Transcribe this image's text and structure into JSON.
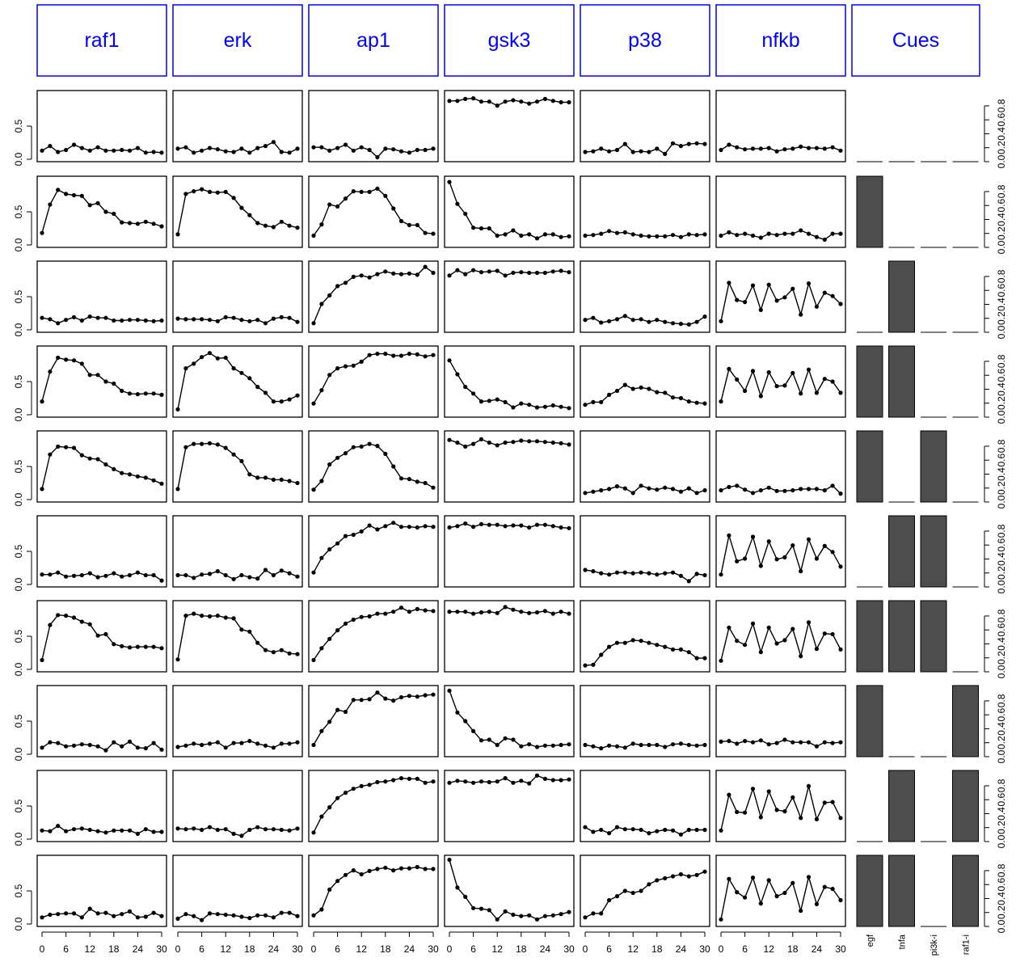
{
  "chart_data": {
    "type": "line",
    "species": [
      "raf1",
      "erk",
      "ap1",
      "gsk3",
      "p38",
      "nfkb"
    ],
    "cues_header": "Cues",
    "cue_names": [
      "egf",
      "tnfa",
      "pi3k-i",
      "raf1-i"
    ],
    "x": [
      0,
      2,
      4,
      6,
      8,
      10,
      12,
      14,
      16,
      18,
      20,
      22,
      24,
      26,
      28,
      30
    ],
    "x_ticks": [
      "0",
      "6",
      "12",
      "18",
      "24",
      "30"
    ],
    "y_ticks_left": [
      "0.0",
      "0.5"
    ],
    "y_ticks_right": [
      "0.0",
      "0.2",
      "0.4",
      "0.6",
      "0.8"
    ],
    "ylim": [
      0,
      1
    ],
    "xlim": [
      0,
      30
    ],
    "colors": {
      "header_border": "#0000ff",
      "header_text": "#0000ff",
      "cue_bar": "#4d4d4d",
      "line": "#000000"
    },
    "cues": [
      [
        0,
        0,
        0,
        0
      ],
      [
        1,
        0,
        0,
        0
      ],
      [
        0,
        1,
        0,
        0
      ],
      [
        1,
        1,
        0,
        0
      ],
      [
        1,
        0,
        1,
        0
      ],
      [
        0,
        1,
        1,
        0
      ],
      [
        1,
        1,
        1,
        0
      ],
      [
        1,
        0,
        0,
        1
      ],
      [
        0,
        1,
        0,
        1
      ],
      [
        1,
        1,
        0,
        1
      ]
    ],
    "series": [
      [
        [
          0.13,
          0.2,
          0.11,
          0.14,
          0.22,
          0.17,
          0.13,
          0.18,
          0.13,
          0.13,
          0.14,
          0.13,
          0.17,
          0.1,
          0.11,
          0.1
        ],
        [
          0.16,
          0.18,
          0.1,
          0.13,
          0.17,
          0.15,
          0.12,
          0.11,
          0.16,
          0.1,
          0.17,
          0.2,
          0.26,
          0.11,
          0.1,
          0.16
        ],
        [
          0.18,
          0.18,
          0.13,
          0.17,
          0.22,
          0.13,
          0.18,
          0.14,
          0.03,
          0.16,
          0.15,
          0.12,
          0.1,
          0.14,
          0.14,
          0.16
        ],
        [
          0.88,
          0.88,
          0.91,
          0.92,
          0.87,
          0.87,
          0.81,
          0.87,
          0.89,
          0.87,
          0.84,
          0.87,
          0.91,
          0.88,
          0.86,
          0.86
        ],
        [
          0.11,
          0.12,
          0.16,
          0.12,
          0.14,
          0.23,
          0.11,
          0.12,
          0.11,
          0.16,
          0.08,
          0.24,
          0.2,
          0.23,
          0.24,
          0.23
        ],
        [
          0.14,
          0.22,
          0.18,
          0.15,
          0.16,
          0.16,
          0.17,
          0.12,
          0.15,
          0.16,
          0.19,
          0.17,
          0.17,
          0.16,
          0.18,
          0.13
        ]
      ],
      [
        [
          0.18,
          0.61,
          0.83,
          0.77,
          0.75,
          0.74,
          0.6,
          0.63,
          0.5,
          0.47,
          0.34,
          0.33,
          0.32,
          0.35,
          0.32,
          0.28
        ],
        [
          0.16,
          0.77,
          0.81,
          0.84,
          0.8,
          0.79,
          0.8,
          0.71,
          0.56,
          0.45,
          0.33,
          0.29,
          0.27,
          0.35,
          0.29,
          0.26
        ],
        [
          0.14,
          0.31,
          0.61,
          0.58,
          0.7,
          0.81,
          0.8,
          0.8,
          0.85,
          0.74,
          0.55,
          0.36,
          0.3,
          0.3,
          0.18,
          0.17
        ],
        [
          0.95,
          0.62,
          0.47,
          0.26,
          0.25,
          0.25,
          0.14,
          0.16,
          0.22,
          0.14,
          0.16,
          0.1,
          0.16,
          0.16,
          0.12,
          0.13
        ],
        [
          0.14,
          0.15,
          0.17,
          0.21,
          0.18,
          0.19,
          0.16,
          0.14,
          0.13,
          0.13,
          0.13,
          0.15,
          0.12,
          0.16,
          0.15,
          0.16
        ],
        [
          0.14,
          0.19,
          0.15,
          0.17,
          0.14,
          0.11,
          0.17,
          0.15,
          0.17,
          0.17,
          0.22,
          0.17,
          0.12,
          0.08,
          0.17,
          0.17
        ]
      ],
      [
        [
          0.18,
          0.16,
          0.1,
          0.15,
          0.19,
          0.14,
          0.2,
          0.18,
          0.18,
          0.14,
          0.14,
          0.15,
          0.15,
          0.14,
          0.13,
          0.14
        ],
        [
          0.17,
          0.16,
          0.16,
          0.16,
          0.15,
          0.13,
          0.19,
          0.18,
          0.15,
          0.13,
          0.15,
          0.1,
          0.17,
          0.19,
          0.18,
          0.12
        ],
        [
          0.1,
          0.39,
          0.52,
          0.66,
          0.71,
          0.8,
          0.82,
          0.79,
          0.84,
          0.88,
          0.85,
          0.84,
          0.85,
          0.83,
          0.95,
          0.86
        ],
        [
          0.82,
          0.9,
          0.84,
          0.9,
          0.87,
          0.88,
          0.89,
          0.82,
          0.86,
          0.87,
          0.86,
          0.86,
          0.86,
          0.88,
          0.89,
          0.87
        ],
        [
          0.15,
          0.18,
          0.11,
          0.13,
          0.16,
          0.21,
          0.15,
          0.16,
          0.12,
          0.15,
          0.12,
          0.1,
          0.09,
          0.08,
          0.12,
          0.2
        ],
        [
          0.13,
          0.71,
          0.45,
          0.42,
          0.67,
          0.3,
          0.68,
          0.44,
          0.49,
          0.62,
          0.23,
          0.7,
          0.35,
          0.56,
          0.51,
          0.39
        ]
      ],
      [
        [
          0.2,
          0.65,
          0.86,
          0.83,
          0.82,
          0.77,
          0.6,
          0.6,
          0.5,
          0.47,
          0.36,
          0.32,
          0.31,
          0.32,
          0.32,
          0.3
        ],
        [
          0.08,
          0.7,
          0.77,
          0.87,
          0.93,
          0.85,
          0.86,
          0.7,
          0.63,
          0.55,
          0.42,
          0.33,
          0.2,
          0.2,
          0.23,
          0.29
        ],
        [
          0.17,
          0.37,
          0.6,
          0.7,
          0.73,
          0.74,
          0.8,
          0.9,
          0.92,
          0.92,
          0.89,
          0.89,
          0.92,
          0.91,
          0.88,
          0.9
        ],
        [
          0.82,
          0.61,
          0.42,
          0.32,
          0.2,
          0.21,
          0.23,
          0.19,
          0.11,
          0.17,
          0.15,
          0.11,
          0.12,
          0.14,
          0.12,
          0.1
        ],
        [
          0.15,
          0.19,
          0.19,
          0.3,
          0.36,
          0.45,
          0.39,
          0.41,
          0.39,
          0.34,
          0.33,
          0.26,
          0.25,
          0.2,
          0.18,
          0.17
        ],
        [
          0.2,
          0.69,
          0.53,
          0.36,
          0.66,
          0.28,
          0.64,
          0.43,
          0.44,
          0.63,
          0.32,
          0.68,
          0.33,
          0.54,
          0.5,
          0.33
        ]
      ],
      [
        [
          0.16,
          0.68,
          0.8,
          0.79,
          0.78,
          0.67,
          0.62,
          0.61,
          0.53,
          0.46,
          0.4,
          0.38,
          0.35,
          0.33,
          0.29,
          0.24
        ],
        [
          0.16,
          0.79,
          0.84,
          0.84,
          0.85,
          0.83,
          0.78,
          0.68,
          0.58,
          0.38,
          0.33,
          0.33,
          0.3,
          0.3,
          0.28,
          0.25
        ],
        [
          0.15,
          0.28,
          0.53,
          0.63,
          0.7,
          0.79,
          0.8,
          0.84,
          0.81,
          0.69,
          0.5,
          0.32,
          0.31,
          0.27,
          0.25,
          0.18
        ],
        [
          0.9,
          0.86,
          0.8,
          0.84,
          0.91,
          0.86,
          0.82,
          0.86,
          0.87,
          0.89,
          0.88,
          0.88,
          0.87,
          0.86,
          0.85,
          0.83
        ],
        [
          0.1,
          0.12,
          0.14,
          0.16,
          0.2,
          0.17,
          0.1,
          0.21,
          0.17,
          0.15,
          0.18,
          0.16,
          0.12,
          0.17,
          0.1,
          0.14
        ],
        [
          0.14,
          0.19,
          0.21,
          0.15,
          0.1,
          0.14,
          0.18,
          0.13,
          0.13,
          0.14,
          0.16,
          0.16,
          0.16,
          0.14,
          0.21,
          0.09
        ]
      ],
      [
        [
          0.15,
          0.15,
          0.18,
          0.12,
          0.13,
          0.14,
          0.17,
          0.11,
          0.13,
          0.17,
          0.12,
          0.14,
          0.18,
          0.14,
          0.14,
          0.06
        ],
        [
          0.14,
          0.14,
          0.1,
          0.15,
          0.16,
          0.2,
          0.14,
          0.08,
          0.14,
          0.11,
          0.09,
          0.22,
          0.14,
          0.21,
          0.17,
          0.12
        ],
        [
          0.18,
          0.4,
          0.53,
          0.62,
          0.73,
          0.75,
          0.8,
          0.89,
          0.83,
          0.88,
          0.93,
          0.87,
          0.87,
          0.86,
          0.88,
          0.87
        ],
        [
          0.86,
          0.88,
          0.92,
          0.87,
          0.91,
          0.9,
          0.9,
          0.88,
          0.89,
          0.89,
          0.86,
          0.9,
          0.9,
          0.88,
          0.86,
          0.85
        ],
        [
          0.22,
          0.2,
          0.17,
          0.15,
          0.18,
          0.18,
          0.17,
          0.18,
          0.17,
          0.15,
          0.17,
          0.18,
          0.13,
          0.05,
          0.16,
          0.14
        ],
        [
          0.15,
          0.74,
          0.35,
          0.39,
          0.72,
          0.28,
          0.65,
          0.38,
          0.41,
          0.59,
          0.2,
          0.68,
          0.39,
          0.58,
          0.49,
          0.27
        ]
      ],
      [
        [
          0.14,
          0.67,
          0.82,
          0.81,
          0.78,
          0.72,
          0.68,
          0.51,
          0.53,
          0.38,
          0.35,
          0.33,
          0.34,
          0.34,
          0.34,
          0.32
        ],
        [
          0.15,
          0.81,
          0.84,
          0.81,
          0.8,
          0.81,
          0.78,
          0.77,
          0.6,
          0.57,
          0.4,
          0.29,
          0.26,
          0.29,
          0.24,
          0.23
        ],
        [
          0.14,
          0.32,
          0.46,
          0.59,
          0.69,
          0.75,
          0.79,
          0.8,
          0.84,
          0.84,
          0.87,
          0.93,
          0.87,
          0.91,
          0.89,
          0.88
        ],
        [
          0.87,
          0.87,
          0.87,
          0.84,
          0.86,
          0.87,
          0.85,
          0.94,
          0.9,
          0.87,
          0.85,
          0.86,
          0.88,
          0.84,
          0.87,
          0.84
        ],
        [
          0.06,
          0.07,
          0.22,
          0.34,
          0.4,
          0.4,
          0.44,
          0.43,
          0.4,
          0.37,
          0.34,
          0.3,
          0.3,
          0.26,
          0.17,
          0.17
        ],
        [
          0.13,
          0.63,
          0.43,
          0.37,
          0.69,
          0.26,
          0.63,
          0.39,
          0.44,
          0.61,
          0.2,
          0.71,
          0.31,
          0.54,
          0.53,
          0.3
        ]
      ],
      [
        [
          0.1,
          0.18,
          0.17,
          0.12,
          0.13,
          0.15,
          0.14,
          0.12,
          0.06,
          0.18,
          0.12,
          0.19,
          0.1,
          0.09,
          0.17,
          0.07
        ],
        [
          0.11,
          0.13,
          0.16,
          0.14,
          0.16,
          0.18,
          0.1,
          0.17,
          0.17,
          0.2,
          0.16,
          0.13,
          0.1,
          0.16,
          0.16,
          0.18
        ],
        [
          0.14,
          0.35,
          0.49,
          0.67,
          0.64,
          0.82,
          0.82,
          0.83,
          0.93,
          0.84,
          0.81,
          0.86,
          0.88,
          0.87,
          0.89,
          0.9
        ],
        [
          0.96,
          0.63,
          0.5,
          0.35,
          0.21,
          0.22,
          0.14,
          0.24,
          0.22,
          0.12,
          0.15,
          0.11,
          0.13,
          0.13,
          0.14,
          0.15
        ],
        [
          0.14,
          0.12,
          0.09,
          0.13,
          0.12,
          0.1,
          0.16,
          0.14,
          0.14,
          0.14,
          0.11,
          0.15,
          0.16,
          0.14,
          0.13,
          0.14
        ],
        [
          0.19,
          0.2,
          0.16,
          0.2,
          0.18,
          0.21,
          0.15,
          0.17,
          0.22,
          0.18,
          0.18,
          0.18,
          0.12,
          0.18,
          0.17,
          0.18
        ]
      ],
      [
        [
          0.13,
          0.12,
          0.2,
          0.12,
          0.15,
          0.16,
          0.14,
          0.12,
          0.1,
          0.13,
          0.13,
          0.13,
          0.08,
          0.15,
          0.11,
          0.11
        ],
        [
          0.16,
          0.15,
          0.16,
          0.14,
          0.18,
          0.14,
          0.15,
          0.08,
          0.05,
          0.14,
          0.18,
          0.15,
          0.15,
          0.14,
          0.13,
          0.16
        ],
        [
          0.1,
          0.34,
          0.48,
          0.62,
          0.7,
          0.76,
          0.8,
          0.82,
          0.86,
          0.87,
          0.89,
          0.92,
          0.91,
          0.91,
          0.85,
          0.87
        ],
        [
          0.85,
          0.88,
          0.87,
          0.85,
          0.87,
          0.86,
          0.87,
          0.92,
          0.85,
          0.88,
          0.84,
          0.96,
          0.91,
          0.89,
          0.89,
          0.9
        ],
        [
          0.18,
          0.11,
          0.14,
          0.09,
          0.18,
          0.15,
          0.15,
          0.14,
          0.09,
          0.12,
          0.14,
          0.13,
          0.07,
          0.14,
          0.14,
          0.14
        ],
        [
          0.13,
          0.67,
          0.41,
          0.4,
          0.76,
          0.33,
          0.72,
          0.44,
          0.42,
          0.63,
          0.32,
          0.8,
          0.3,
          0.55,
          0.56,
          0.32
        ]
      ],
      [
        [
          0.1,
          0.14,
          0.15,
          0.16,
          0.16,
          0.1,
          0.23,
          0.16,
          0.17,
          0.12,
          0.15,
          0.19,
          0.1,
          0.11,
          0.17,
          0.12
        ],
        [
          0.08,
          0.15,
          0.12,
          0.06,
          0.16,
          0.15,
          0.14,
          0.13,
          0.11,
          0.09,
          0.13,
          0.13,
          0.1,
          0.17,
          0.17,
          0.12
        ],
        [
          0.13,
          0.22,
          0.52,
          0.65,
          0.74,
          0.81,
          0.75,
          0.8,
          0.83,
          0.85,
          0.81,
          0.84,
          0.84,
          0.86,
          0.83,
          0.83
        ],
        [
          0.97,
          0.55,
          0.41,
          0.24,
          0.23,
          0.21,
          0.07,
          0.19,
          0.14,
          0.12,
          0.13,
          0.07,
          0.12,
          0.13,
          0.15,
          0.18
        ],
        [
          0.1,
          0.16,
          0.16,
          0.36,
          0.42,
          0.5,
          0.47,
          0.5,
          0.6,
          0.66,
          0.69,
          0.72,
          0.75,
          0.72,
          0.74,
          0.79
        ],
        [
          0.07,
          0.68,
          0.48,
          0.4,
          0.7,
          0.31,
          0.66,
          0.42,
          0.47,
          0.62,
          0.2,
          0.71,
          0.3,
          0.56,
          0.53,
          0.36
        ]
      ]
    ]
  }
}
